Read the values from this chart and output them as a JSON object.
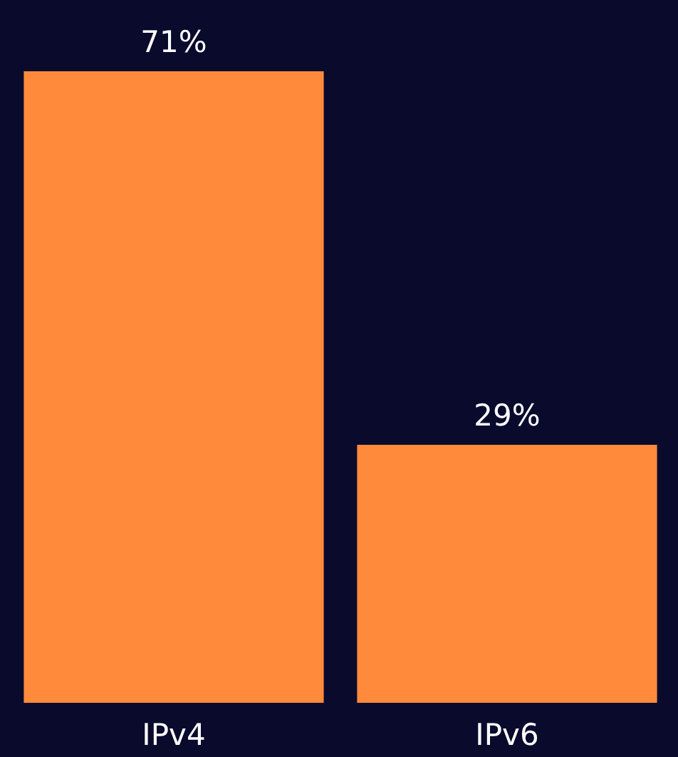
{
  "chart_data": {
    "type": "bar",
    "categories": [
      "IPv4",
      "IPv6"
    ],
    "values": [
      71,
      29
    ],
    "color": "#ff8a3c",
    "value_labels": [
      "71%",
      "29%"
    ]
  }
}
